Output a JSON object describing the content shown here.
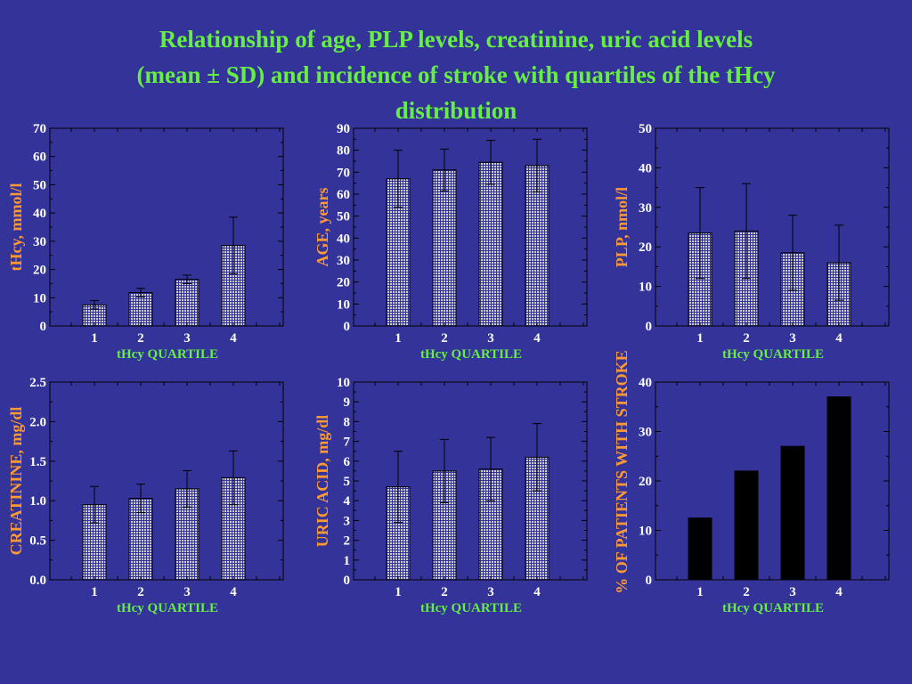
{
  "title": {
    "line1": "Relationship of age, PLP levels, creatinine, uric acid levels",
    "line2": "(mean ± SD) and incidence of stroke with quartiles of the tHcy",
    "line3": "distribution"
  },
  "colors": {
    "background": "#333399",
    "title": "#66ee44",
    "ylabel": "#ff9933",
    "xlabel": "#66ee44",
    "ticks": "#ffffff",
    "bar_pattern": "#cccccc",
    "bar_solid": "#000000"
  },
  "chart_data": [
    {
      "type": "bar",
      "categories": [
        "1",
        "2",
        "3",
        "4"
      ],
      "values": [
        7.5,
        11.8,
        16.5,
        28.5
      ],
      "sd": [
        1.5,
        1.5,
        1.5,
        10
      ],
      "ylabel": "tHcy, mmol/l",
      "xlabel": "tHcy QUARTILE",
      "ylim": [
        0,
        70
      ],
      "yticks": [
        "0",
        "10",
        "20",
        "30",
        "40",
        "50",
        "60",
        "70"
      ],
      "fill": "pattern"
    },
    {
      "type": "bar",
      "categories": [
        "1",
        "2",
        "3",
        "4"
      ],
      "values": [
        67,
        71,
        74.5,
        73
      ],
      "sd": [
        13,
        9.5,
        10,
        12
      ],
      "ylabel": "AGE, years",
      "xlabel": "tHcy QUARTILE",
      "ylim": [
        0,
        90
      ],
      "yticks": [
        "0",
        "10",
        "20",
        "30",
        "40",
        "50",
        "60",
        "70",
        "80",
        "90"
      ],
      "fill": "pattern"
    },
    {
      "type": "bar",
      "categories": [
        "1",
        "2",
        "3",
        "4"
      ],
      "values": [
        23.5,
        24,
        18.5,
        16
      ],
      "sd": [
        11.5,
        12,
        9.5,
        9.5
      ],
      "ylabel": "PLP, nmol/l",
      "xlabel": "tHcy QUARTILE",
      "ylim": [
        0,
        50
      ],
      "yticks": [
        "0",
        "10",
        "20",
        "30",
        "40",
        "50"
      ],
      "fill": "pattern"
    },
    {
      "type": "bar",
      "categories": [
        "1",
        "2",
        "3",
        "4"
      ],
      "values": [
        0.95,
        1.03,
        1.15,
        1.29
      ],
      "sd": [
        0.23,
        0.18,
        0.23,
        0.34
      ],
      "ylabel": "CREATININE,  mg/dl",
      "xlabel": "tHcy QUARTILE",
      "ylim": [
        0,
        2.5
      ],
      "yticks": [
        "0.0",
        "0.5",
        "1.0",
        "1.5",
        "2.0",
        "2.5"
      ],
      "fill": "pattern"
    },
    {
      "type": "bar",
      "categories": [
        "1",
        "2",
        "3",
        "4"
      ],
      "values": [
        4.7,
        5.5,
        5.6,
        6.2
      ],
      "sd": [
        1.8,
        1.6,
        1.6,
        1.7
      ],
      "ylabel": "URIC ACID,  mg/dl",
      "xlabel": "tHcy QUARTILE",
      "ylim": [
        0,
        10
      ],
      "yticks": [
        "0",
        "1",
        "2",
        "3",
        "4",
        "5",
        "6",
        "7",
        "8",
        "9",
        "10"
      ],
      "fill": "pattern"
    },
    {
      "type": "bar",
      "categories": [
        "1",
        "2",
        "3",
        "4"
      ],
      "values": [
        12.5,
        22,
        27,
        37
      ],
      "sd": null,
      "ylabel": "% OF PATIENTS WITH STROKE",
      "xlabel": "tHcy QUARTILE",
      "ylim": [
        0,
        40
      ],
      "yticks": [
        "0",
        "10",
        "20",
        "30",
        "40"
      ],
      "fill": "solid"
    }
  ]
}
